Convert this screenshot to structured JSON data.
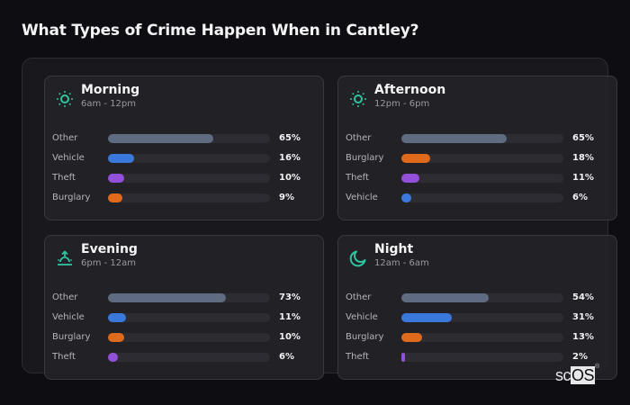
{
  "title": "What Types of Crime Happen When in Cantley?",
  "logo": {
    "prefix": "sc",
    "boxed": "OS",
    "mark": "®"
  },
  "colors": {
    "accent_icon": "#2ec4a0",
    "Other": "#5f6b80",
    "Vehicle": "#3a78dc",
    "Theft": "#9350d8",
    "Burglary": "#e06a1c"
  },
  "cards": [
    {
      "name": "Morning",
      "range": "6am - 12pm",
      "icon": "sun-icon",
      "rows": [
        {
          "label": "Other",
          "value": 65,
          "display": "65%"
        },
        {
          "label": "Vehicle",
          "value": 16,
          "display": "16%"
        },
        {
          "label": "Theft",
          "value": 10,
          "display": "10%"
        },
        {
          "label": "Burglary",
          "value": 9,
          "display": "9%"
        }
      ]
    },
    {
      "name": "Afternoon",
      "range": "12pm - 6pm",
      "icon": "sun-icon",
      "rows": [
        {
          "label": "Other",
          "value": 65,
          "display": "65%"
        },
        {
          "label": "Burglary",
          "value": 18,
          "display": "18%"
        },
        {
          "label": "Theft",
          "value": 11,
          "display": "11%"
        },
        {
          "label": "Vehicle",
          "value": 6,
          "display": "6%"
        }
      ]
    },
    {
      "name": "Evening",
      "range": "6pm - 12am",
      "icon": "sunset-icon",
      "rows": [
        {
          "label": "Other",
          "value": 73,
          "display": "73%"
        },
        {
          "label": "Vehicle",
          "value": 11,
          "display": "11%"
        },
        {
          "label": "Burglary",
          "value": 10,
          "display": "10%"
        },
        {
          "label": "Theft",
          "value": 6,
          "display": "6%"
        }
      ]
    },
    {
      "name": "Night",
      "range": "12am - 6am",
      "icon": "moon-icon",
      "rows": [
        {
          "label": "Other",
          "value": 54,
          "display": "54%"
        },
        {
          "label": "Vehicle",
          "value": 31,
          "display": "31%"
        },
        {
          "label": "Burglary",
          "value": 13,
          "display": "13%"
        },
        {
          "label": "Theft",
          "value": 2,
          "display": "2%"
        }
      ]
    }
  ],
  "chart_data": [
    {
      "type": "bar",
      "orientation": "horizontal",
      "title": "Morning",
      "subtitle": "6am - 12pm",
      "categories": [
        "Other",
        "Vehicle",
        "Theft",
        "Burglary"
      ],
      "values": [
        65,
        16,
        10,
        9
      ],
      "unit": "%",
      "xlim": [
        0,
        100
      ]
    },
    {
      "type": "bar",
      "orientation": "horizontal",
      "title": "Afternoon",
      "subtitle": "12pm - 6pm",
      "categories": [
        "Other",
        "Burglary",
        "Theft",
        "Vehicle"
      ],
      "values": [
        65,
        18,
        11,
        6
      ],
      "unit": "%",
      "xlim": [
        0,
        100
      ]
    },
    {
      "type": "bar",
      "orientation": "horizontal",
      "title": "Evening",
      "subtitle": "6pm - 12am",
      "categories": [
        "Other",
        "Vehicle",
        "Burglary",
        "Theft"
      ],
      "values": [
        73,
        11,
        10,
        6
      ],
      "unit": "%",
      "xlim": [
        0,
        100
      ]
    },
    {
      "type": "bar",
      "orientation": "horizontal",
      "title": "Night",
      "subtitle": "12am - 6am",
      "categories": [
        "Other",
        "Vehicle",
        "Burglary",
        "Theft"
      ],
      "values": [
        54,
        31,
        13,
        2
      ],
      "unit": "%",
      "xlim": [
        0,
        100
      ]
    }
  ]
}
